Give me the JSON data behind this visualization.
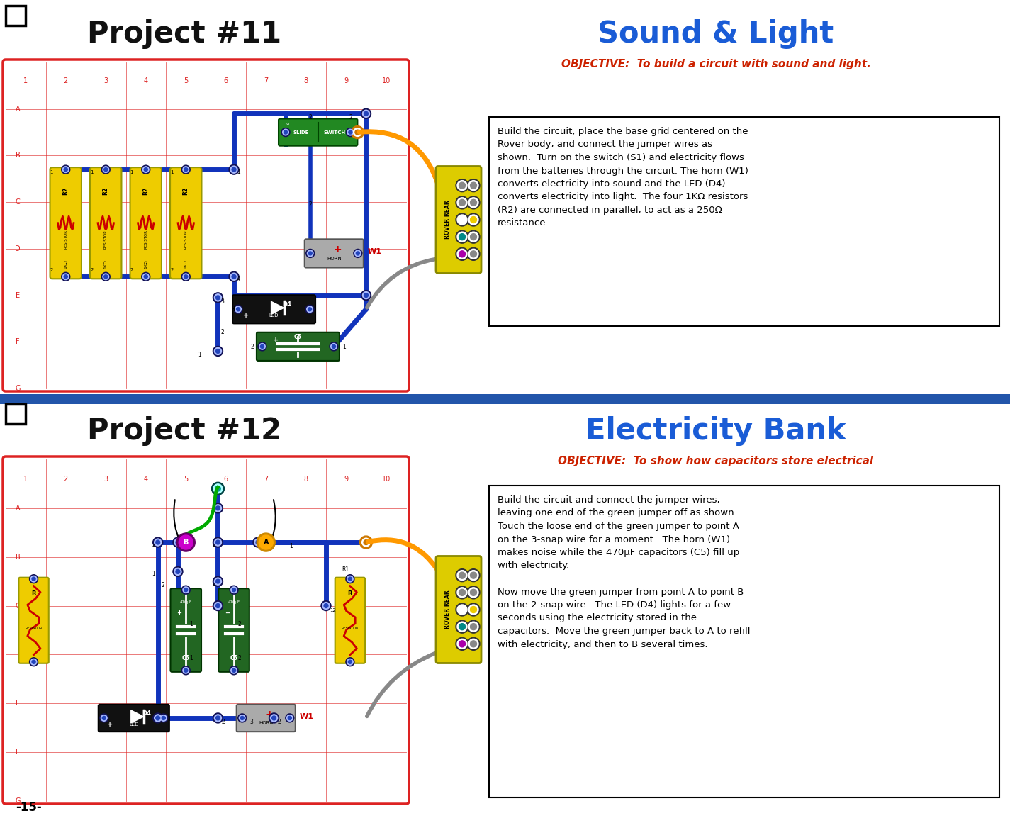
{
  "bg_color": "#ffffff",
  "page_number": "-15-",
  "divider_color": "#2255aa",
  "proj11_title": "Project #11",
  "proj11_title_color": "#111111",
  "sound_light_title": "Sound & Light",
  "sound_light_color": "#1a5cd6",
  "obj11_text": "OBJECTIVE:  To build a circuit with sound and light.",
  "obj11_color": "#cc2200",
  "proj12_title": "Project #12",
  "proj12_title_color": "#111111",
  "elec_bank_title": "Electricity Bank",
  "elec_bank_color": "#1a5cd6",
  "obj12_text": "OBJECTIVE:  To show how capacitors store electrical",
  "obj12_color": "#cc2200",
  "desc11_text": "Build the circuit, place the base grid centered on the\nRover body, and connect the jumper wires as\nshown.  Turn on the switch (S1) and electricity flows\nfrom the batteries through the circuit. The horn (W1)\nconverts electricity into sound and the LED (D4)\nconverts electricity into light.  The four 1KΩ resistors\n(R2) are connected in parallel, to act as a 250Ω\nresistance.",
  "desc12_text": "Build the circuit and connect the jumper wires,\nleaving one end of the green jumper off as shown.\nTouch the loose end of the green jumper to point A\non the 3-snap wire for a moment.  The horn (W1)\nmakes noise while the 470µF capacitors (C5) fill up\nwith electricity.\n\nNow move the green jumper from point A to point B\non the 2-snap wire.  The LED (D4) lights for a few\nseconds using the electricity stored in the\ncapacitors.  Move the green jumper back to A to refill\nwith electricity, and then to B several times.",
  "grid_red": "#dd2222",
  "wire_blue": "#1133bb",
  "wire_orange": "#ff9900",
  "wire_gray": "#888888",
  "wire_green": "#00aa00",
  "snap_gray": "#888888",
  "resistor_yellow": "#eecc00",
  "resistor_border": "#999900",
  "switch_green": "#116611",
  "switch_label_green": "#00aa00",
  "horn_gray": "#aaaaaa",
  "led_black": "#111111",
  "cap_green": "#116611",
  "rover_yellow": "#ddcc00"
}
